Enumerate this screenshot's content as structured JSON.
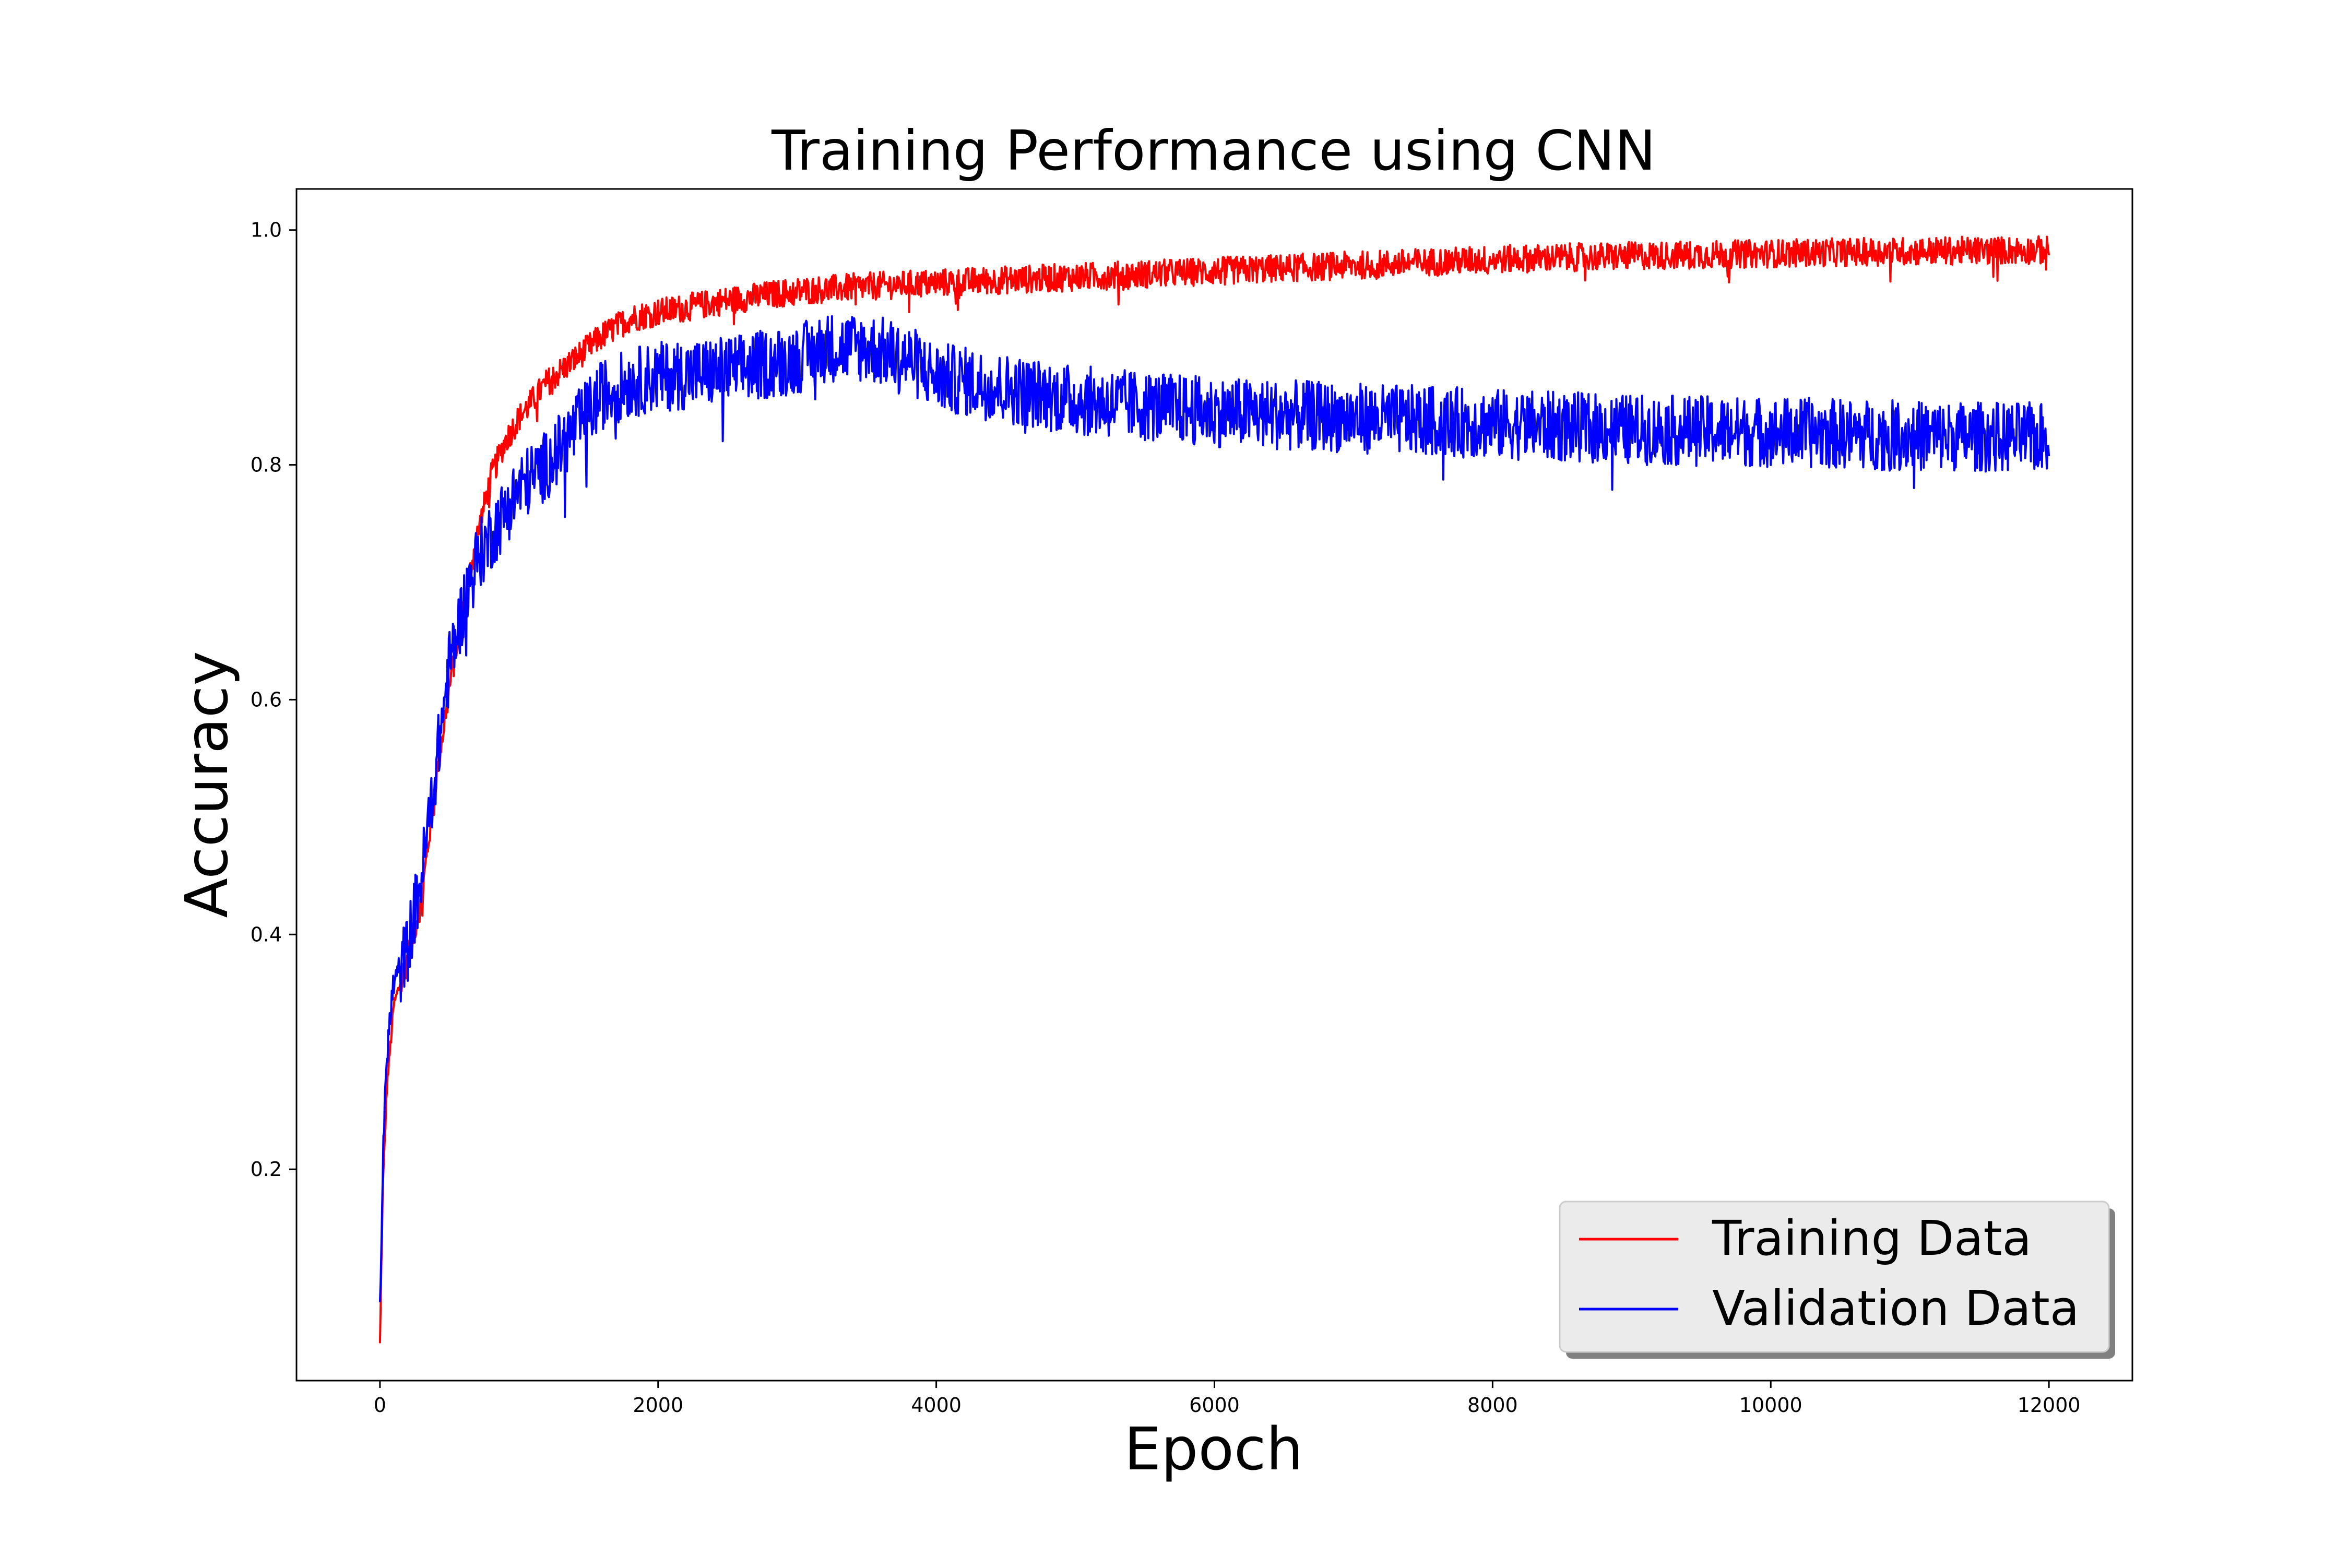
{
  "chart_data": {
    "type": "line",
    "title": "Training Performance using CNN",
    "xlabel": "Epoch",
    "ylabel": "Accuracy",
    "xlim": [
      -600,
      12600
    ],
    "ylim": [
      0.02,
      1.035
    ],
    "x_ticks": [
      0,
      2000,
      4000,
      6000,
      8000,
      10000,
      12000
    ],
    "x_tick_labels": [
      "0",
      "2000",
      "4000",
      "6000",
      "8000",
      "10000",
      "12000"
    ],
    "y_ticks": [
      0.2,
      0.4,
      0.6,
      0.8,
      1.0
    ],
    "y_tick_labels": [
      "0.2",
      "0.4",
      "0.6",
      "0.8",
      "1.0"
    ],
    "grid": false,
    "legend": {
      "placement": "lower-right",
      "entries": [
        "Training Data",
        "Validation Data"
      ]
    },
    "x_range": [
      0,
      12000
    ],
    "series": [
      {
        "name": "Training Data",
        "color": "#ff0000",
        "x": [
          0,
          20,
          50,
          100,
          150,
          200,
          300,
          400,
          500,
          600,
          700,
          800,
          900,
          1000,
          1200,
          1400,
          1600,
          1800,
          2000,
          2500,
          3000,
          3500,
          4000,
          5000,
          6000,
          7000,
          8000,
          9000,
          10000,
          11000,
          12000
        ],
        "values": [
          0.05,
          0.18,
          0.27,
          0.34,
          0.36,
          0.38,
          0.43,
          0.53,
          0.61,
          0.68,
          0.74,
          0.79,
          0.82,
          0.84,
          0.87,
          0.89,
          0.91,
          0.925,
          0.93,
          0.94,
          0.948,
          0.952,
          0.955,
          0.96,
          0.965,
          0.97,
          0.975,
          0.978,
          0.98,
          0.982,
          0.983
        ],
        "noise_band": 0.012
      },
      {
        "name": "Validation Data",
        "color": "#0000ff",
        "x": [
          0,
          20,
          50,
          100,
          150,
          200,
          300,
          400,
          500,
          600,
          700,
          800,
          900,
          1000,
          1200,
          1400,
          1600,
          1800,
          2000,
          2500,
          3000,
          3200,
          3500,
          3800,
          4000,
          4500,
          5000,
          6000,
          7000,
          8000,
          9000,
          10000,
          11000,
          12000
        ],
        "values": [
          0.08,
          0.2,
          0.3,
          0.36,
          0.37,
          0.39,
          0.45,
          0.54,
          0.63,
          0.68,
          0.72,
          0.74,
          0.76,
          0.78,
          0.8,
          0.83,
          0.86,
          0.87,
          0.875,
          0.88,
          0.89,
          0.9,
          0.9,
          0.89,
          0.875,
          0.865,
          0.855,
          0.845,
          0.84,
          0.835,
          0.83,
          0.828,
          0.825,
          0.823
        ],
        "noise_band": 0.03
      }
    ]
  }
}
